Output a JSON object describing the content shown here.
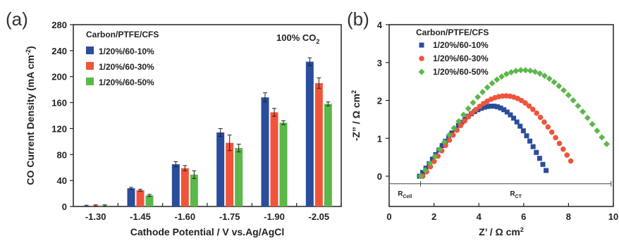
{
  "panels": {
    "a_label": "(a)",
    "b_label": "(b)"
  },
  "chart_data": [
    {
      "type": "bar",
      "ylabel": "CO Current Density (mA cm",
      "ylabel_sup": "-2",
      "ylabel_end": ")",
      "xlabel": "Cathode Potential / V vs.Ag/AgCl",
      "categories": [
        "-1.30",
        "-1.45",
        "-1.60",
        "-1.75",
        "-1.90",
        "-2.05"
      ],
      "ylim": [
        0,
        280
      ],
      "yticks": [
        "0",
        "40",
        "80",
        "120",
        "160",
        "200",
        "240",
        "280"
      ],
      "legend_title": "Carbon/PTFE/CFS",
      "annotation": "100% CO",
      "annotation_sub": "2",
      "series": [
        {
          "name": "1/20%/60-10%",
          "color": "#2a4d9c",
          "values": [
            1,
            28,
            65,
            114,
            168,
            223
          ],
          "errors": [
            1,
            1.5,
            4,
            6,
            7,
            6
          ]
        },
        {
          "name": "1/20%/60-30%",
          "color": "#f0543a",
          "values": [
            1.5,
            25,
            59,
            98,
            145,
            190
          ],
          "errors": [
            1,
            1.5,
            4,
            12,
            6,
            8
          ]
        },
        {
          "name": "1/20%/60-50%",
          "color": "#5bb84b",
          "values": [
            1.5,
            17,
            49,
            90,
            129,
            158
          ],
          "errors": [
            1,
            1.5,
            6,
            6,
            3,
            3
          ]
        }
      ]
    },
    {
      "type": "scatter",
      "xlabel": "Z’ / Ω cm",
      "xlabel_sup": "2",
      "ylabel": "-Z” / Ω cm",
      "ylabel_sup": "2",
      "xlim": [
        0,
        10
      ],
      "ylim": [
        -0.8,
        4
      ],
      "xticks": [
        "0",
        "2",
        "4",
        "6",
        "8",
        "10"
      ],
      "yticks": [
        "0",
        "1",
        "2",
        "3",
        "4"
      ],
      "legend_title": "Carbon/PTFE/CFS",
      "rcell_label": "R",
      "rcell_sub": "Cell",
      "rct_label": "R",
      "rct_sub": "CT",
      "rcell_range": [
        0,
        1.4
      ],
      "rct_range": [
        1.4,
        9.9
      ],
      "series": [
        {
          "name": "1/20%/60-10%",
          "color": "#2a4d9c",
          "marker": "square",
          "x0": 1.35,
          "x1": 7.0,
          "apex_x": 4.6,
          "apex_y": 1.85,
          "end_y": 0.15
        },
        {
          "name": "1/20%/60-30%",
          "color": "#f0543a",
          "marker": "circle",
          "x0": 1.5,
          "x1": 8.1,
          "apex_x": 5.2,
          "apex_y": 2.12,
          "end_y": 0.4
        },
        {
          "name": "1/20%/60-50%",
          "color": "#5bb84b",
          "marker": "diamond",
          "x0": 1.4,
          "x1": 9.7,
          "apex_x": 6.0,
          "apex_y": 2.8,
          "end_y": 0.85
        }
      ]
    }
  ]
}
